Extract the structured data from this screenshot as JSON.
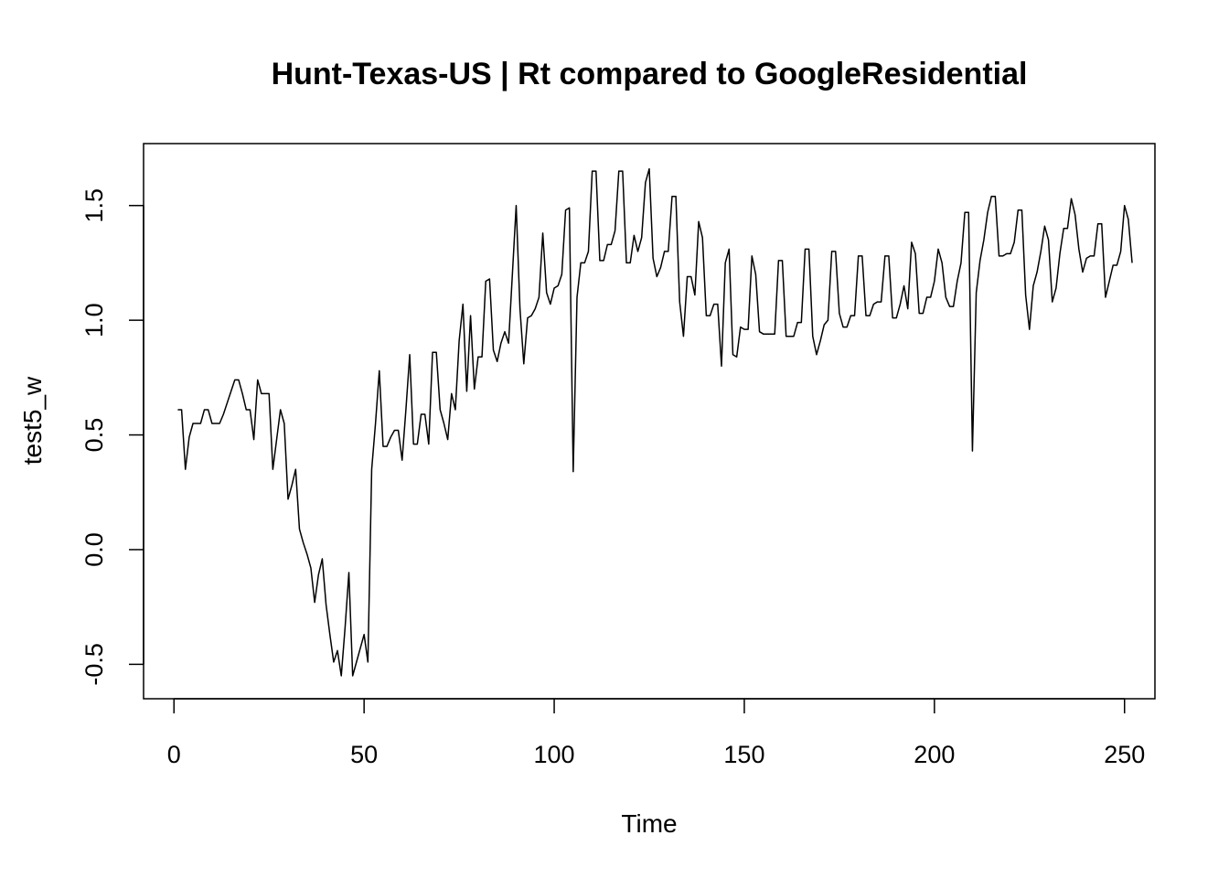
{
  "chart_data": {
    "type": "line",
    "title": "Hunt-Texas-US | Rt compared to GoogleResidential",
    "xlabel": "Time",
    "ylabel": "test5_w",
    "xlim": [
      -8,
      258
    ],
    "ylim": [
      -0.65,
      1.77
    ],
    "x_ticks": [
      0,
      50,
      100,
      150,
      200,
      250
    ],
    "y_ticks": [
      -0.5,
      0.0,
      0.5,
      1.0,
      1.5
    ],
    "x_tick_labels": [
      "0",
      "50",
      "100",
      "150",
      "200",
      "250"
    ],
    "y_tick_labels": [
      "-0.5",
      "0.0",
      "0.5",
      "1.0",
      "1.5"
    ],
    "grid": false,
    "legend": "none",
    "line_color": "#000000",
    "series": [
      {
        "x_start": 1,
        "x_step": 1,
        "values": [
          0.61,
          0.61,
          0.35,
          0.49,
          0.55,
          0.55,
          0.55,
          0.61,
          0.61,
          0.55,
          0.55,
          0.55,
          0.59,
          0.64,
          0.69,
          0.74,
          0.74,
          0.68,
          0.61,
          0.61,
          0.48,
          0.74,
          0.68,
          0.68,
          0.68,
          0.35,
          0.48,
          0.61,
          0.55,
          0.22,
          0.28,
          0.35,
          0.09,
          0.03,
          -0.02,
          -0.08,
          -0.23,
          -0.11,
          -0.04,
          -0.24,
          -0.37,
          -0.49,
          -0.44,
          -0.55,
          -0.34,
          -0.1,
          -0.55,
          -0.49,
          -0.43,
          -0.37,
          -0.49,
          0.35,
          0.55,
          0.78,
          0.45,
          0.45,
          0.49,
          0.52,
          0.52,
          0.39,
          0.61,
          0.85,
          0.46,
          0.46,
          0.59,
          0.59,
          0.46,
          0.86,
          0.86,
          0.61,
          0.55,
          0.48,
          0.68,
          0.61,
          0.91,
          1.07,
          0.69,
          1.02,
          0.7,
          0.84,
          0.84,
          1.17,
          1.18,
          0.87,
          0.82,
          0.9,
          0.95,
          0.9,
          1.2,
          1.5,
          1.05,
          0.81,
          1.01,
          1.02,
          1.05,
          1.1,
          1.38,
          1.12,
          1.07,
          1.14,
          1.15,
          1.2,
          1.48,
          1.49,
          0.34,
          1.1,
          1.25,
          1.25,
          1.3,
          1.65,
          1.65,
          1.26,
          1.26,
          1.33,
          1.33,
          1.39,
          1.65,
          1.65,
          1.25,
          1.25,
          1.37,
          1.3,
          1.36,
          1.6,
          1.66,
          1.27,
          1.19,
          1.23,
          1.3,
          1.3,
          1.54,
          1.54,
          1.08,
          0.93,
          1.19,
          1.19,
          1.11,
          1.43,
          1.36,
          1.02,
          1.02,
          1.07,
          1.07,
          0.8,
          1.25,
          1.31,
          0.85,
          0.84,
          0.97,
          0.96,
          0.96,
          1.28,
          1.2,
          0.95,
          0.94,
          0.94,
          0.94,
          0.94,
          1.26,
          1.26,
          0.93,
          0.93,
          0.93,
          0.99,
          0.99,
          1.31,
          1.31,
          0.93,
          0.85,
          0.91,
          0.98,
          1.0,
          1.3,
          1.3,
          1.03,
          0.97,
          0.97,
          1.02,
          1.02,
          1.28,
          1.28,
          1.02,
          1.02,
          1.07,
          1.08,
          1.08,
          1.28,
          1.28,
          1.01,
          1.01,
          1.07,
          1.15,
          1.05,
          1.34,
          1.29,
          1.03,
          1.03,
          1.1,
          1.1,
          1.17,
          1.31,
          1.25,
          1.1,
          1.06,
          1.06,
          1.17,
          1.25,
          1.47,
          1.47,
          0.43,
          1.12,
          1.26,
          1.35,
          1.47,
          1.54,
          1.54,
          1.28,
          1.28,
          1.29,
          1.29,
          1.34,
          1.48,
          1.48,
          1.11,
          0.96,
          1.15,
          1.21,
          1.3,
          1.41,
          1.35,
          1.08,
          1.14,
          1.29,
          1.4,
          1.4,
          1.53,
          1.46,
          1.31,
          1.21,
          1.27,
          1.28,
          1.28,
          1.42,
          1.42,
          1.1,
          1.17,
          1.24,
          1.24,
          1.3,
          1.5,
          1.44,
          1.25
        ]
      }
    ]
  }
}
